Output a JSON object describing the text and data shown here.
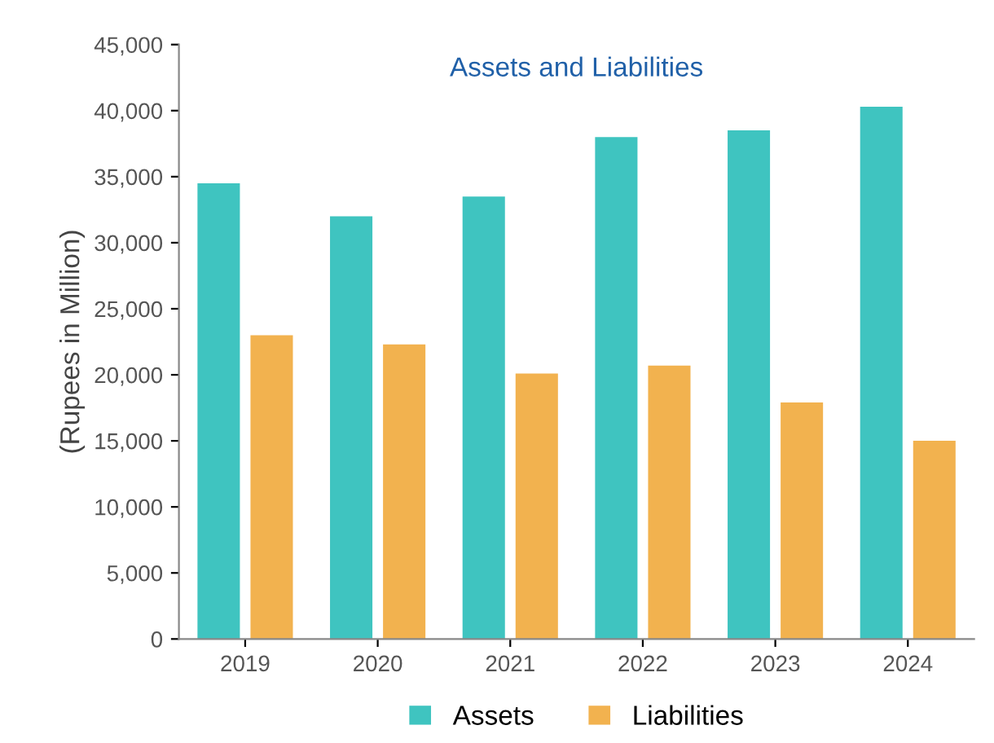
{
  "chart_data": {
    "type": "bar",
    "title": "Assets and Liabilities",
    "ylabel": "(Rupees in Million)",
    "categories": [
      "2019",
      "2020",
      "2021",
      "2022",
      "2023",
      "2024"
    ],
    "series": [
      {
        "name": "Assets",
        "color": "#3fc4c0",
        "values": [
          34500,
          32000,
          33500,
          38000,
          38500,
          40300
        ]
      },
      {
        "name": "Liabilities",
        "color": "#f2b24f",
        "values": [
          23000,
          22300,
          20100,
          20700,
          17900,
          15000
        ]
      }
    ],
    "ylim": [
      0,
      45000
    ],
    "yticks": [
      {
        "value": 0,
        "label": "0"
      },
      {
        "value": 5000,
        "label": "5,000"
      },
      {
        "value": 10000,
        "label": "10,000"
      },
      {
        "value": 15000,
        "label": "15,000"
      },
      {
        "value": 20000,
        "label": "20,000"
      },
      {
        "value": 25000,
        "label": "25,000"
      },
      {
        "value": 30000,
        "label": "30,000"
      },
      {
        "value": 35000,
        "label": "35,000"
      },
      {
        "value": 40000,
        "label": "40,000"
      },
      {
        "value": 45000,
        "label": "45,000"
      }
    ],
    "grid": false,
    "legend": "bottom"
  }
}
